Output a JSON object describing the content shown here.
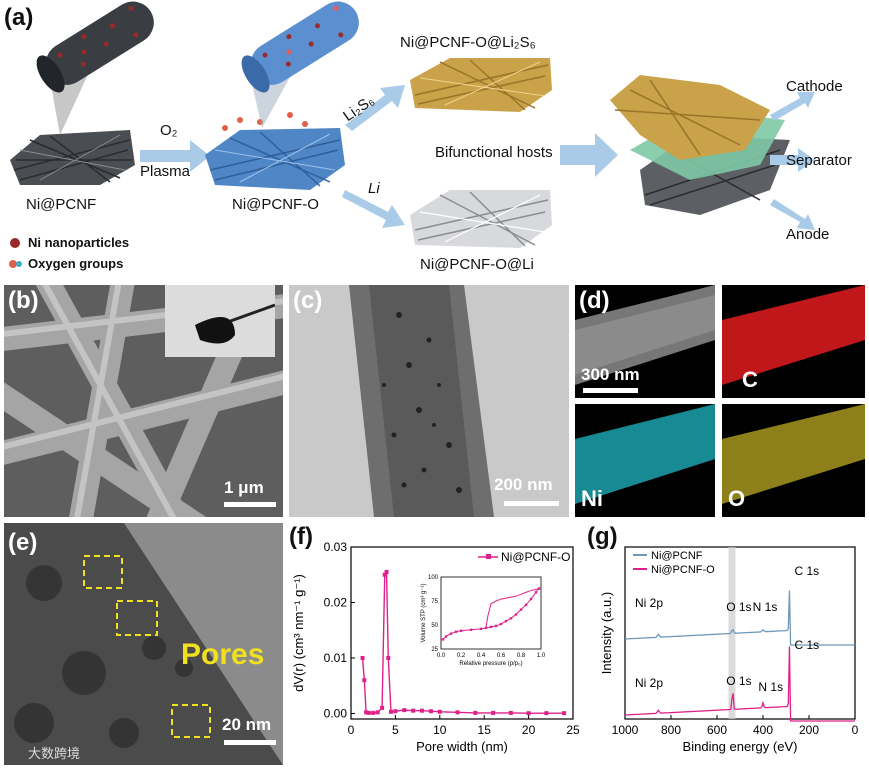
{
  "panel_a": {
    "label": "(a)",
    "ni_pcnf": "Ni@PCNF",
    "o2": "O₂",
    "plasma": "Plasma",
    "ni_pcnf_o": "Ni@PCNF-O",
    "li2s6": "Li₂S₆",
    "li": "Li",
    "top_product": "Ni@PCNF-O@Li₂S₆",
    "bottom_product": "Ni@PCNF-O@Li",
    "bifunctional": "Bifunctional hosts",
    "cathode": "Cathode",
    "separator": "Separator",
    "anode": "Anode",
    "legend_ni": "Ni nanoparticles",
    "legend_o": "Oxygen groups",
    "colors": {
      "arrow": "#a9cbe8",
      "gray_fiber": "#4a4d52",
      "blue_fiber": "#4f86c6",
      "gold_fiber": "#c9a24a",
      "ni_dot": "#9a2a2a",
      "separator": "#7dc9a5"
    }
  },
  "panel_b": {
    "label": "(b)",
    "scale": "1 μm"
  },
  "panel_c": {
    "label": "(c)",
    "scale": "200 nm"
  },
  "panel_d": {
    "label": "(d)",
    "scale": "300 nm",
    "maps": [
      "C",
      "Ni",
      "O"
    ],
    "colors": {
      "C": "#c0181a",
      "Ni": "#1fb8c4",
      "O": "#b0a020"
    }
  },
  "panel_e": {
    "label": "(e)",
    "pores": "Pores",
    "scale": "20 nm",
    "watermark": "大数跨境"
  },
  "panel_f": {
    "label": "(f)",
    "chart_data": {
      "type": "line",
      "series": [
        {
          "name": "Ni@PCNF-O",
          "color": "#e0208a",
          "x": [
            1.3,
            1.5,
            1.7,
            2.0,
            2.5,
            3.0,
            3.5,
            3.8,
            4.0,
            4.2,
            4.5,
            5,
            6,
            7,
            8,
            9,
            10,
            12,
            14,
            16,
            18,
            20,
            22,
            24
          ],
          "y": [
            0.01,
            0.006,
            0.0002,
            0.0001,
            0.0001,
            0.0002,
            0.001,
            0.025,
            0.0255,
            0.01,
            0.0003,
            0.0004,
            0.0006,
            0.0005,
            0.0005,
            0.0004,
            0.0003,
            0.0002,
            0.0001,
            0.0001,
            0.0001,
            5e-05,
            5e-05,
            5e-05
          ]
        }
      ],
      "xlabel": "Pore width (nm)",
      "ylabel": "dV(r) (cm³ nm⁻¹ g⁻¹)",
      "xlim": [
        0,
        25
      ],
      "ylim": [
        -0.001,
        0.03
      ],
      "xticks": [
        "0",
        "5",
        "10",
        "15",
        "20",
        "25"
      ],
      "yticks": [
        "0.00",
        "0.01",
        "0.02",
        "0.03"
      ],
      "legend": "top-right",
      "inset": {
        "xlabel": "Relative pressure (p/p₀)",
        "ylabel": "Volume STP (cm³ g⁻¹)",
        "xticks": [
          "0.0",
          "0.2",
          "0.4",
          "0.6",
          "0.8",
          "1.0"
        ],
        "yticks": [
          "25",
          "50",
          "75",
          "100"
        ],
        "xlim": [
          0,
          1.0
        ],
        "ylim": [
          25,
          100
        ],
        "adsorption": {
          "x": [
            0.02,
            0.05,
            0.1,
            0.15,
            0.2,
            0.3,
            0.4,
            0.45,
            0.5,
            0.55,
            0.6,
            0.65,
            0.7,
            0.75,
            0.8,
            0.85,
            0.9,
            0.95,
            0.98
          ],
          "y": [
            35,
            38,
            41,
            43,
            44,
            45,
            46,
            47,
            48,
            49,
            51,
            54,
            57,
            61,
            66,
            71,
            77,
            84,
            88
          ]
        },
        "desorption": {
          "x": [
            0.98,
            0.95,
            0.9,
            0.85,
            0.8,
            0.75,
            0.7,
            0.65,
            0.6,
            0.55,
            0.5,
            0.47,
            0.45
          ],
          "y": [
            88,
            87,
            86,
            84,
            82,
            80,
            79,
            78,
            77,
            75,
            72,
            60,
            48
          ]
        }
      }
    }
  },
  "panel_g": {
    "label": "(g)",
    "chart_data": {
      "type": "line",
      "series": [
        {
          "name": "Ni@PCNF",
          "color": "#6f98b8"
        },
        {
          "name": "Ni@PCNF-O",
          "color": "#e0208a"
        }
      ],
      "xlabel": "Binding energy (eV)",
      "ylabel": "Intensity (a.u.)",
      "xlim": [
        1000,
        0
      ],
      "xticks": [
        "1000",
        "800",
        "600",
        "400",
        "200",
        "0"
      ],
      "annotations": [
        "C 1s",
        "Ni 2p",
        "O 1s",
        "N 1s",
        "C 1s",
        "Ni 2p",
        "O 1s",
        "N 1s"
      ],
      "highlight_band": [
        550,
        520
      ],
      "legend": "top-left"
    }
  }
}
